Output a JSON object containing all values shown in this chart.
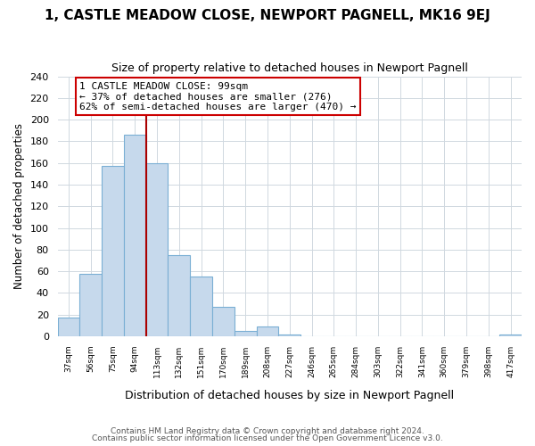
{
  "title": "1, CASTLE MEADOW CLOSE, NEWPORT PAGNELL, MK16 9EJ",
  "subtitle": "Size of property relative to detached houses in Newport Pagnell",
  "xlabel": "Distribution of detached houses by size in Newport Pagnell",
  "ylabel": "Number of detached properties",
  "bar_values": [
    17,
    58,
    157,
    186,
    160,
    75,
    55,
    27,
    5,
    9,
    2,
    0,
    0,
    0,
    0,
    0,
    0,
    0,
    0,
    0,
    2
  ],
  "bin_labels": [
    "37sqm",
    "56sqm",
    "75sqm",
    "94sqm",
    "113sqm",
    "132sqm",
    "151sqm",
    "170sqm",
    "189sqm",
    "208sqm",
    "227sqm",
    "246sqm",
    "265sqm",
    "284sqm",
    "303sqm",
    "322sqm",
    "341sqm",
    "360sqm",
    "379sqm",
    "398sqm",
    "417sqm"
  ],
  "bar_color": "#c6d9ec",
  "bar_edge_color": "#7aafd4",
  "bar_edge_width": 0.8,
  "grid_color": "#d0d8e0",
  "vline_x_index": 3,
  "vline_color": "#aa0000",
  "annotation_text": "1 CASTLE MEADOW CLOSE: 99sqm\n← 37% of detached houses are smaller (276)\n62% of semi-detached houses are larger (470) →",
  "annotation_box_color": "#ffffff",
  "annotation_box_edge": "#cc0000",
  "ylim": [
    0,
    240
  ],
  "yticks": [
    0,
    20,
    40,
    60,
    80,
    100,
    120,
    140,
    160,
    180,
    200,
    220,
    240
  ],
  "footer1": "Contains HM Land Registry data © Crown copyright and database right 2024.",
  "footer2": "Contains public sector information licensed under the Open Government Licence v3.0.",
  "bg_color": "#ffffff",
  "plot_bg_color": "#ffffff",
  "title_fontsize": 11,
  "subtitle_fontsize": 9
}
